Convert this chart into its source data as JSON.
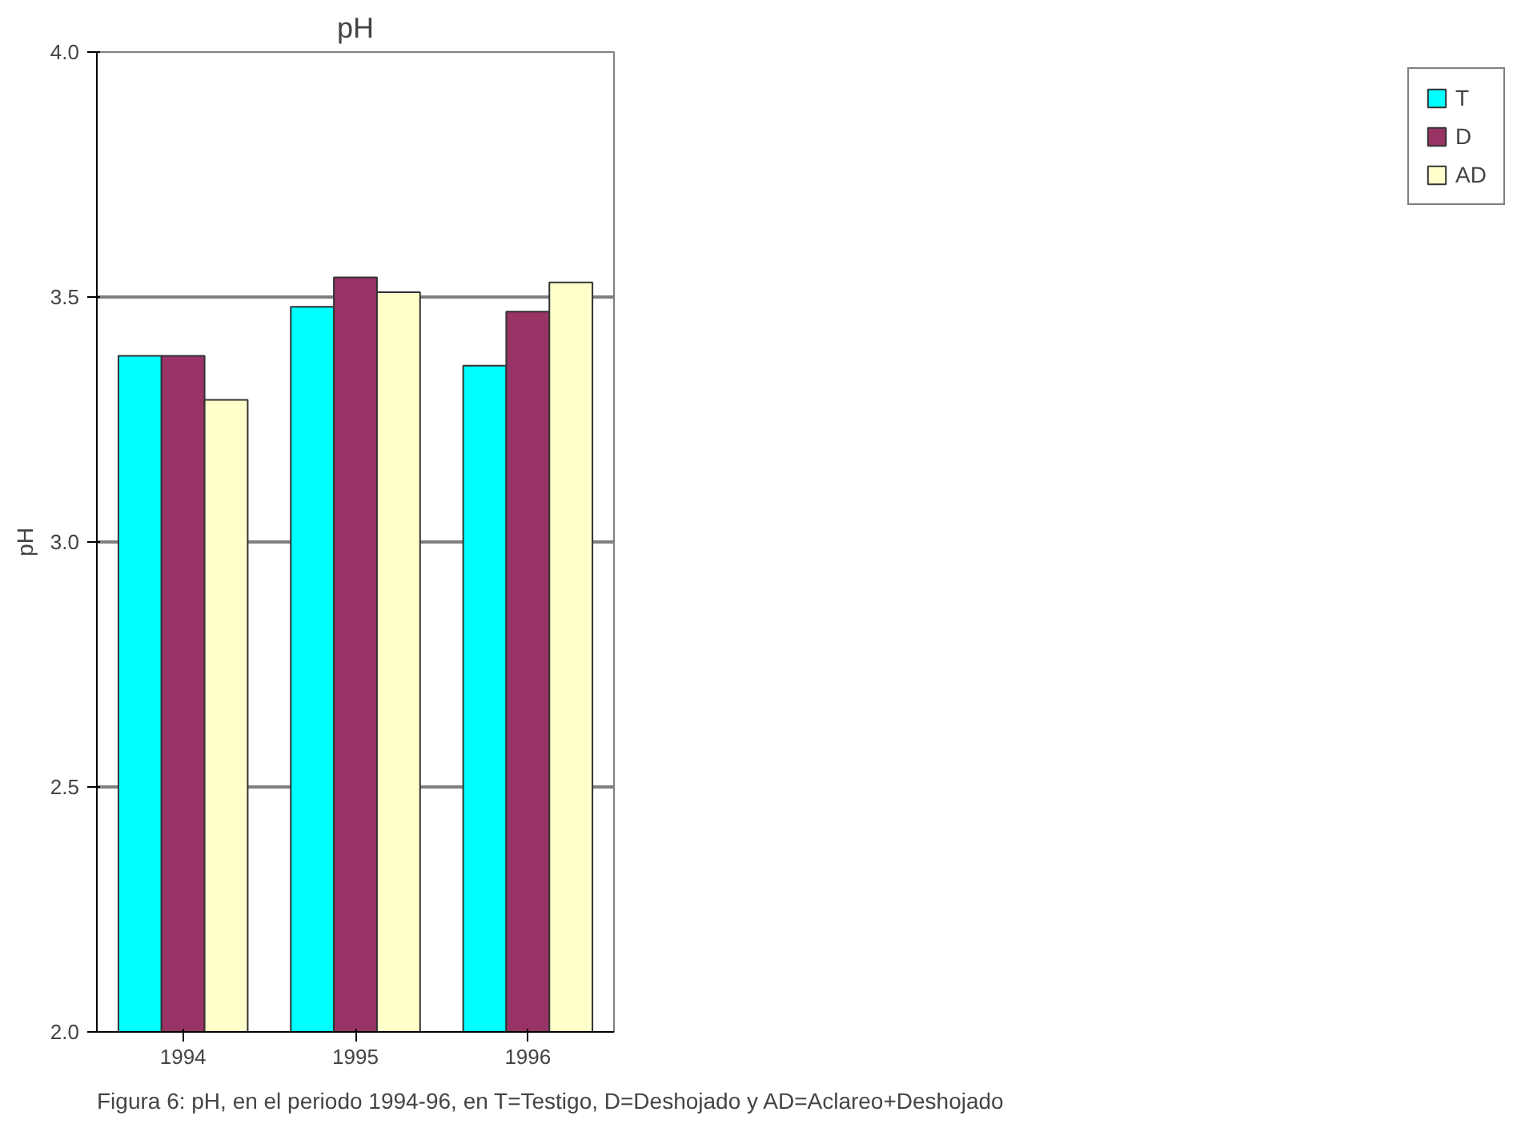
{
  "chart_data": {
    "type": "bar",
    "title": "pH",
    "ylabel": "pH",
    "categories": [
      "1994",
      "1995",
      "1996"
    ],
    "series": [
      {
        "name": "T",
        "color": "#00ffff",
        "values": [
          3.38,
          3.48,
          3.36
        ]
      },
      {
        "name": "D",
        "color": "#993366",
        "values": [
          3.38,
          3.54,
          3.47
        ]
      },
      {
        "name": "AD",
        "color": "#ffffcc",
        "values": [
          3.29,
          3.51,
          3.53
        ]
      }
    ],
    "ylim": [
      2.0,
      4.0
    ],
    "yticks": [
      {
        "value": 2.0,
        "label": "2.0"
      },
      {
        "value": 2.5,
        "label": "2.5"
      },
      {
        "value": 3.0,
        "label": "3.0"
      },
      {
        "value": 3.5,
        "label": "3.5"
      },
      {
        "value": 4.0,
        "label": "4.0"
      }
    ],
    "grid": "y",
    "legend": "right",
    "annotations": [
      "Figura 6: pH, en el periodo 1994-96, en T=Testigo, D=Deshojado y AD=Aclareo+Deshojado"
    ]
  }
}
